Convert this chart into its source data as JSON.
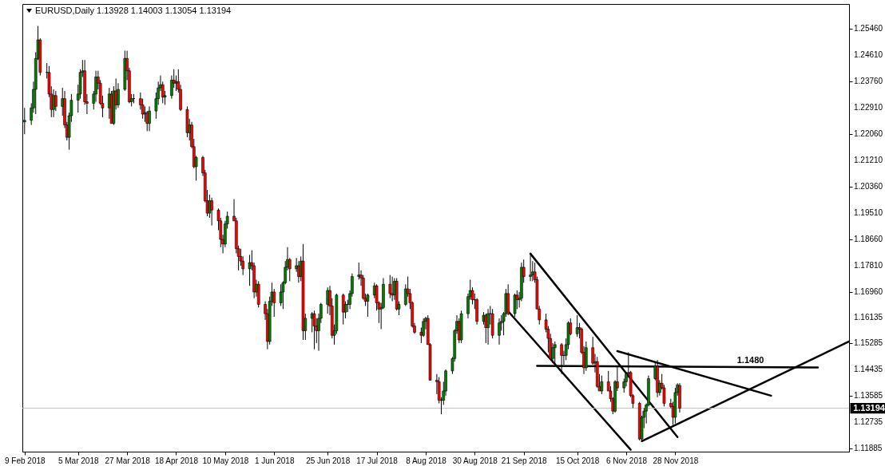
{
  "chart_data": {
    "type": "candlestick",
    "title": "EURUSD,Daily 1.13928 1.14003 1.13054 1.13194",
    "xlim": [
      "2018-02-08",
      "2019-02-14"
    ],
    "xticks": [
      {
        "value": "2018-02-09",
        "label": "9 Feb 2018"
      },
      {
        "value": "2018-03-05",
        "label": "5 Mar 2018"
      },
      {
        "value": "2018-03-27",
        "label": "27 Mar 2018"
      },
      {
        "value": "2018-04-18",
        "label": "18 Apr 2018"
      },
      {
        "value": "2018-05-10",
        "label": "10 May 2018"
      },
      {
        "value": "2018-06-01",
        "label": "1 Jun 2018"
      },
      {
        "value": "2018-06-25",
        "label": "25 Jun 2018"
      },
      {
        "value": "2018-07-17",
        "label": "17 Jul 2018"
      },
      {
        "value": "2018-08-08",
        "label": "8 Aug 2018"
      },
      {
        "value": "2018-08-30",
        "label": "30 Aug 2018"
      },
      {
        "value": "2018-09-21",
        "label": "21 Sep 2018"
      },
      {
        "value": "2018-10-15",
        "label": "15 Oct 2018"
      },
      {
        "value": "2018-11-06",
        "label": "6 Nov 2018"
      },
      {
        "value": "2018-11-28",
        "label": "28 Nov 2018"
      }
    ],
    "ylim": [
      1.1179,
      1.2626
    ],
    "yticks": [
      {
        "value": 1.2546,
        "label": "1.25460"
      },
      {
        "value": 1.2461,
        "label": "1.24610"
      },
      {
        "value": 1.2376,
        "label": "1.23760"
      },
      {
        "value": 1.2291,
        "label": "1.22910"
      },
      {
        "value": 1.2206,
        "label": "1.22060"
      },
      {
        "value": 1.2121,
        "label": "1.21210"
      },
      {
        "value": 1.2036,
        "label": "1.20360"
      },
      {
        "value": 1.1951,
        "label": "1.19510"
      },
      {
        "value": 1.1866,
        "label": "1.18660"
      },
      {
        "value": 1.1781,
        "label": "1.17810"
      },
      {
        "value": 1.1696,
        "label": "1.16960"
      },
      {
        "value": 1.16135,
        "label": "1.16135"
      },
      {
        "value": 1.15285,
        "label": "1.15285"
      },
      {
        "value": 1.14435,
        "label": "1.14435"
      },
      {
        "value": 1.13585,
        "label": "1.13585"
      },
      {
        "value": 1.12735,
        "label": "1.12735"
      },
      {
        "value": 1.11885,
        "label": "1.11885"
      }
    ],
    "x": [
      "2018-02-09",
      "2018-02-12",
      "2018-02-13",
      "2018-02-14",
      "2018-02-15",
      "2018-02-16",
      "2018-02-19",
      "2018-02-20",
      "2018-02-21",
      "2018-02-22",
      "2018-02-23",
      "2018-02-26",
      "2018-02-27",
      "2018-02-28",
      "2018-03-01",
      "2018-03-02",
      "2018-03-05",
      "2018-03-06",
      "2018-03-07",
      "2018-03-08",
      "2018-03-09",
      "2018-03-12",
      "2018-03-13",
      "2018-03-14",
      "2018-03-15",
      "2018-03-16",
      "2018-03-19",
      "2018-03-20",
      "2018-03-21",
      "2018-03-22",
      "2018-03-23",
      "2018-03-26",
      "2018-03-27",
      "2018-03-28",
      "2018-03-29",
      "2018-03-30",
      "2018-04-02",
      "2018-04-03",
      "2018-04-04",
      "2018-04-05",
      "2018-04-06",
      "2018-04-09",
      "2018-04-10",
      "2018-04-11",
      "2018-04-12",
      "2018-04-13",
      "2018-04-16",
      "2018-04-17",
      "2018-04-18",
      "2018-04-19",
      "2018-04-20",
      "2018-04-23",
      "2018-04-24",
      "2018-04-25",
      "2018-04-26",
      "2018-04-27",
      "2018-04-30",
      "2018-05-01",
      "2018-05-02",
      "2018-05-03",
      "2018-05-04",
      "2018-05-07",
      "2018-05-08",
      "2018-05-09",
      "2018-05-10",
      "2018-05-11",
      "2018-05-14",
      "2018-05-15",
      "2018-05-16",
      "2018-05-17",
      "2018-05-18",
      "2018-05-21",
      "2018-05-22",
      "2018-05-23",
      "2018-05-24",
      "2018-05-25",
      "2018-05-28",
      "2018-05-29",
      "2018-05-30",
      "2018-05-31",
      "2018-06-01",
      "2018-06-04",
      "2018-06-05",
      "2018-06-06",
      "2018-06-07",
      "2018-06-08",
      "2018-06-11",
      "2018-06-12",
      "2018-06-13",
      "2018-06-14",
      "2018-06-15",
      "2018-06-18",
      "2018-06-19",
      "2018-06-20",
      "2018-06-21",
      "2018-06-22",
      "2018-06-25",
      "2018-06-26",
      "2018-06-27",
      "2018-06-28",
      "2018-06-29",
      "2018-07-02",
      "2018-07-03",
      "2018-07-04",
      "2018-07-05",
      "2018-07-06",
      "2018-07-09",
      "2018-07-10",
      "2018-07-11",
      "2018-07-12",
      "2018-07-13",
      "2018-07-16",
      "2018-07-17",
      "2018-07-18",
      "2018-07-19",
      "2018-07-20",
      "2018-07-23",
      "2018-07-24",
      "2018-07-25",
      "2018-07-26",
      "2018-07-27",
      "2018-07-30",
      "2018-07-31",
      "2018-08-01",
      "2018-08-02",
      "2018-08-03",
      "2018-08-06",
      "2018-08-07",
      "2018-08-08",
      "2018-08-09",
      "2018-08-10",
      "2018-08-13",
      "2018-08-14",
      "2018-08-15",
      "2018-08-16",
      "2018-08-17",
      "2018-08-20",
      "2018-08-21",
      "2018-08-22",
      "2018-08-23",
      "2018-08-24",
      "2018-08-27",
      "2018-08-28",
      "2018-08-29",
      "2018-08-30",
      "2018-08-31",
      "2018-09-03",
      "2018-09-04",
      "2018-09-05",
      "2018-09-06",
      "2018-09-07",
      "2018-09-10",
      "2018-09-11",
      "2018-09-12",
      "2018-09-13",
      "2018-09-14",
      "2018-09-17",
      "2018-09-18",
      "2018-09-19",
      "2018-09-20",
      "2018-09-21",
      "2018-09-24",
      "2018-09-25",
      "2018-09-26",
      "2018-09-27",
      "2018-09-28",
      "2018-10-01",
      "2018-10-02",
      "2018-10-03",
      "2018-10-04",
      "2018-10-05",
      "2018-10-08",
      "2018-10-09",
      "2018-10-10",
      "2018-10-11",
      "2018-10-12",
      "2018-10-15",
      "2018-10-16",
      "2018-10-17",
      "2018-10-18",
      "2018-10-19",
      "2018-10-22",
      "2018-10-23",
      "2018-10-24",
      "2018-10-25",
      "2018-10-26",
      "2018-10-29",
      "2018-10-30",
      "2018-10-31",
      "2018-11-01",
      "2018-11-02",
      "2018-11-05",
      "2018-11-06",
      "2018-11-07",
      "2018-11-08",
      "2018-11-09",
      "2018-11-12",
      "2018-11-13",
      "2018-11-14",
      "2018-11-15",
      "2018-11-16",
      "2018-11-19",
      "2018-11-20",
      "2018-11-21",
      "2018-11-22",
      "2018-11-23",
      "2018-11-26",
      "2018-11-27",
      "2018-11-28",
      "2018-11-29",
      "2018-11-30"
    ],
    "ohlc": [
      [
        1.2245,
        1.229,
        1.2205,
        1.225
      ],
      [
        1.225,
        1.2305,
        1.2235,
        1.229
      ],
      [
        1.229,
        1.2375,
        1.2275,
        1.235
      ],
      [
        1.235,
        1.247,
        1.227,
        1.245
      ],
      [
        1.245,
        1.2555,
        1.2445,
        1.251
      ],
      [
        1.251,
        1.2515,
        1.2395,
        1.2405
      ],
      [
        1.2405,
        1.2435,
        1.2385,
        1.2405
      ],
      [
        1.2405,
        1.2425,
        1.2325,
        1.2335
      ],
      [
        1.2335,
        1.236,
        1.226,
        1.2285
      ],
      [
        1.2285,
        1.235,
        1.226,
        1.233
      ],
      [
        1.233,
        1.2345,
        1.228,
        1.2295
      ],
      [
        1.2295,
        1.2355,
        1.2265,
        1.232
      ],
      [
        1.232,
        1.2345,
        1.2225,
        1.2235
      ],
      [
        1.2235,
        1.2245,
        1.2185,
        1.2195
      ],
      [
        1.2195,
        1.2275,
        1.2155,
        1.2265
      ],
      [
        1.2265,
        1.2335,
        1.2245,
        1.2315
      ],
      [
        1.2315,
        1.2365,
        1.2275,
        1.2335
      ],
      [
        1.2335,
        1.2415,
        1.232,
        1.2405
      ],
      [
        1.2405,
        1.2445,
        1.239,
        1.241
      ],
      [
        1.241,
        1.2445,
        1.23,
        1.231
      ],
      [
        1.231,
        1.2335,
        1.227,
        1.2305
      ],
      [
        1.2305,
        1.2345,
        1.2285,
        1.2335
      ],
      [
        1.2335,
        1.241,
        1.231,
        1.239
      ],
      [
        1.239,
        1.241,
        1.235,
        1.237
      ],
      [
        1.237,
        1.238,
        1.23,
        1.2305
      ],
      [
        1.2305,
        1.233,
        1.226,
        1.229
      ],
      [
        1.229,
        1.2355,
        1.2255,
        1.2335
      ],
      [
        1.2335,
        1.2345,
        1.224,
        1.224
      ],
      [
        1.224,
        1.236,
        1.2235,
        1.2345
      ],
      [
        1.2345,
        1.2385,
        1.2285,
        1.23
      ],
      [
        1.23,
        1.237,
        1.229,
        1.235
      ],
      [
        1.235,
        1.2475,
        1.2345,
        1.245
      ],
      [
        1.245,
        1.2475,
        1.238,
        1.241
      ],
      [
        1.241,
        1.242,
        1.2305,
        1.231
      ],
      [
        1.231,
        1.2335,
        1.2295,
        1.232
      ],
      [
        1.232,
        1.2335,
        1.2305,
        1.232
      ],
      [
        1.232,
        1.234,
        1.2285,
        1.23
      ],
      [
        1.23,
        1.232,
        1.2255,
        1.227
      ],
      [
        1.227,
        1.2295,
        1.2245,
        1.2275
      ],
      [
        1.2275,
        1.228,
        1.2215,
        1.224
      ],
      [
        1.224,
        1.2295,
        1.2215,
        1.228
      ],
      [
        1.228,
        1.234,
        1.2255,
        1.232
      ],
      [
        1.232,
        1.2375,
        1.23,
        1.2355
      ],
      [
        1.2355,
        1.2395,
        1.2345,
        1.2365
      ],
      [
        1.2365,
        1.2375,
        1.2305,
        1.2325
      ],
      [
        1.2325,
        1.2345,
        1.23,
        1.233
      ],
      [
        1.233,
        1.2395,
        1.232,
        1.238
      ],
      [
        1.238,
        1.2415,
        1.2355,
        1.237
      ],
      [
        1.237,
        1.2395,
        1.2345,
        1.2375
      ],
      [
        1.2375,
        1.2415,
        1.234,
        1.235
      ],
      [
        1.235,
        1.2365,
        1.228,
        1.2285
      ],
      [
        1.2285,
        1.2295,
        1.2195,
        1.221
      ],
      [
        1.221,
        1.2255,
        1.2185,
        1.2235
      ],
      [
        1.2235,
        1.2245,
        1.216,
        1.2165
      ],
      [
        1.2165,
        1.219,
        1.2095,
        1.21
      ],
      [
        1.21,
        1.2135,
        1.2055,
        1.213
      ],
      [
        1.213,
        1.2135,
        1.207,
        1.208
      ],
      [
        1.208,
        1.209,
        1.1985,
        1.199
      ],
      [
        1.199,
        1.2025,
        1.194,
        1.195
      ],
      [
        1.195,
        1.201,
        1.1935,
        1.199
      ],
      [
        1.199,
        1.2,
        1.191,
        1.196
      ],
      [
        1.196,
        1.1965,
        1.1895,
        1.1925
      ],
      [
        1.1925,
        1.1935,
        1.184,
        1.1865
      ],
      [
        1.1865,
        1.188,
        1.182,
        1.185
      ],
      [
        1.185,
        1.1925,
        1.184,
        1.1915
      ],
      [
        1.1915,
        1.1955,
        1.19,
        1.194
      ],
      [
        1.194,
        1.1995,
        1.1925,
        1.1925
      ],
      [
        1.1925,
        1.1935,
        1.182,
        1.1835
      ],
      [
        1.1835,
        1.1845,
        1.1765,
        1.181
      ],
      [
        1.181,
        1.1835,
        1.178,
        1.1795
      ],
      [
        1.1795,
        1.181,
        1.175,
        1.177
      ],
      [
        1.177,
        1.1815,
        1.1715,
        1.179
      ],
      [
        1.179,
        1.183,
        1.1765,
        1.178
      ],
      [
        1.178,
        1.179,
        1.1675,
        1.1695
      ],
      [
        1.1695,
        1.1735,
        1.168,
        1.172
      ],
      [
        1.172,
        1.173,
        1.1645,
        1.1655
      ],
      [
        1.1655,
        1.1665,
        1.1605,
        1.1625
      ],
      [
        1.1625,
        1.164,
        1.151,
        1.1535
      ],
      [
        1.1535,
        1.168,
        1.1525,
        1.1665
      ],
      [
        1.1665,
        1.1725,
        1.165,
        1.1695
      ],
      [
        1.1695,
        1.1705,
        1.1615,
        1.166
      ],
      [
        1.166,
        1.172,
        1.165,
        1.1695
      ],
      [
        1.1695,
        1.173,
        1.164,
        1.1725
      ],
      [
        1.1725,
        1.1795,
        1.172,
        1.1775
      ],
      [
        1.1775,
        1.184,
        1.1765,
        1.18
      ],
      [
        1.18,
        1.1805,
        1.173,
        1.177
      ],
      [
        1.177,
        1.1805,
        1.176,
        1.178
      ],
      [
        1.178,
        1.1795,
        1.1725,
        1.1745
      ],
      [
        1.1745,
        1.181,
        1.173,
        1.1795
      ],
      [
        1.1795,
        1.185,
        1.154,
        1.157
      ],
      [
        1.157,
        1.1625,
        1.154,
        1.161
      ],
      [
        1.161,
        1.163,
        1.1565,
        1.1625
      ],
      [
        1.1625,
        1.1635,
        1.151,
        1.1585
      ],
      [
        1.1585,
        1.161,
        1.153,
        1.157
      ],
      [
        1.157,
        1.1625,
        1.1505,
        1.161
      ],
      [
        1.161,
        1.166,
        1.1595,
        1.1655
      ],
      [
        1.1655,
        1.171,
        1.1625,
        1.17
      ],
      [
        1.17,
        1.1715,
        1.162,
        1.165
      ],
      [
        1.165,
        1.1675,
        1.1545,
        1.1555
      ],
      [
        1.1555,
        1.159,
        1.1525,
        1.157
      ],
      [
        1.157,
        1.169,
        1.156,
        1.1685
      ],
      [
        1.1685,
        1.169,
        1.159,
        1.163
      ],
      [
        1.163,
        1.1665,
        1.161,
        1.1655
      ],
      [
        1.1655,
        1.167,
        1.163,
        1.1655
      ],
      [
        1.1655,
        1.17,
        1.164,
        1.169
      ],
      [
        1.169,
        1.1755,
        1.168,
        1.1745
      ],
      [
        1.1745,
        1.179,
        1.1735,
        1.175
      ],
      [
        1.175,
        1.1765,
        1.1715,
        1.174
      ],
      [
        1.174,
        1.175,
        1.167,
        1.1675
      ],
      [
        1.1675,
        1.169,
        1.165,
        1.1665
      ],
      [
        1.1665,
        1.169,
        1.1615,
        1.1685
      ],
      [
        1.1685,
        1.1725,
        1.1675,
        1.1715
      ],
      [
        1.1715,
        1.172,
        1.1635,
        1.166
      ],
      [
        1.166,
        1.1665,
        1.1595,
        1.164
      ],
      [
        1.164,
        1.166,
        1.1575,
        1.1645
      ],
      [
        1.1645,
        1.174,
        1.164,
        1.172
      ],
      [
        1.172,
        1.175,
        1.1675,
        1.169
      ],
      [
        1.169,
        1.1745,
        1.1665,
        1.1685
      ],
      [
        1.1685,
        1.174,
        1.167,
        1.173
      ],
      [
        1.173,
        1.174,
        1.1635,
        1.164
      ],
      [
        1.164,
        1.1665,
        1.162,
        1.1655
      ],
      [
        1.1655,
        1.172,
        1.165,
        1.1705
      ],
      [
        1.1705,
        1.1745,
        1.168,
        1.169
      ],
      [
        1.169,
        1.1705,
        1.164,
        1.166
      ],
      [
        1.166,
        1.1665,
        1.158,
        1.1585
      ],
      [
        1.1585,
        1.1595,
        1.156,
        1.1565
      ],
      [
        1.1565,
        1.158,
        1.153,
        1.1555
      ],
      [
        1.1555,
        1.161,
        1.155,
        1.16
      ],
      [
        1.16,
        1.1615,
        1.1575,
        1.161
      ],
      [
        1.161,
        1.162,
        1.1525,
        1.1525
      ],
      [
        1.1525,
        1.153,
        1.141,
        1.141
      ],
      [
        1.141,
        1.143,
        1.1365,
        1.1405
      ],
      [
        1.1405,
        1.142,
        1.1335,
        1.1345
      ],
      [
        1.1345,
        1.1355,
        1.13,
        1.1345
      ],
      [
        1.1345,
        1.1405,
        1.133,
        1.1375
      ],
      [
        1.1375,
        1.1445,
        1.136,
        1.144
      ],
      [
        1.144,
        1.1485,
        1.143,
        1.148
      ],
      [
        1.148,
        1.1575,
        1.147,
        1.157
      ],
      [
        1.157,
        1.162,
        1.156,
        1.16
      ],
      [
        1.16,
        1.161,
        1.153,
        1.154
      ],
      [
        1.154,
        1.1635,
        1.153,
        1.1625
      ],
      [
        1.1625,
        1.169,
        1.161,
        1.168
      ],
      [
        1.168,
        1.1735,
        1.167,
        1.17
      ],
      [
        1.17,
        1.171,
        1.1655,
        1.167
      ],
      [
        1.167,
        1.169,
        1.164,
        1.167
      ],
      [
        1.167,
        1.1675,
        1.159,
        1.16
      ],
      [
        1.16,
        1.163,
        1.159,
        1.162
      ],
      [
        1.162,
        1.1625,
        1.153,
        1.158
      ],
      [
        1.158,
        1.164,
        1.1525,
        1.1625
      ],
      [
        1.1625,
        1.165,
        1.159,
        1.1625
      ],
      [
        1.1625,
        1.164,
        1.1545,
        1.1555
      ],
      [
        1.1555,
        1.161,
        1.1525,
        1.1595
      ],
      [
        1.1595,
        1.162,
        1.157,
        1.16
      ],
      [
        1.16,
        1.163,
        1.1555,
        1.1625
      ],
      [
        1.1625,
        1.1705,
        1.1615,
        1.169
      ],
      [
        1.169,
        1.172,
        1.162,
        1.1625
      ],
      [
        1.1625,
        1.169,
        1.1615,
        1.1685
      ],
      [
        1.1685,
        1.17,
        1.164,
        1.167
      ],
      [
        1.167,
        1.1695,
        1.1645,
        1.1675
      ],
      [
        1.1675,
        1.179,
        1.1665,
        1.1775
      ],
      [
        1.1775,
        1.18,
        1.1725,
        1.1745
      ],
      [
        1.1745,
        1.1815,
        1.173,
        1.175
      ],
      [
        1.175,
        1.1795,
        1.173,
        1.176
      ],
      [
        1.176,
        1.179,
        1.1725,
        1.1735
      ],
      [
        1.1735,
        1.1745,
        1.164,
        1.164
      ],
      [
        1.164,
        1.165,
        1.159,
        1.1605
      ],
      [
        1.1605,
        1.1625,
        1.1565,
        1.1575
      ],
      [
        1.1575,
        1.1585,
        1.15,
        1.1545
      ],
      [
        1.1545,
        1.156,
        1.148,
        1.148
      ],
      [
        1.148,
        1.153,
        1.1465,
        1.1515
      ],
      [
        1.1515,
        1.1535,
        1.146,
        1.1525
      ],
      [
        1.1525,
        1.153,
        1.143,
        1.149
      ],
      [
        1.149,
        1.1505,
        1.146,
        1.149
      ],
      [
        1.149,
        1.1545,
        1.1475,
        1.1525
      ],
      [
        1.1525,
        1.16,
        1.151,
        1.1595
      ],
      [
        1.1595,
        1.161,
        1.1555,
        1.156
      ],
      [
        1.156,
        1.162,
        1.155,
        1.158
      ],
      [
        1.158,
        1.1595,
        1.1545,
        1.1575
      ],
      [
        1.1575,
        1.158,
        1.1495,
        1.15
      ],
      [
        1.15,
        1.152,
        1.143,
        1.145
      ],
      [
        1.145,
        1.1535,
        1.144,
        1.1515
      ],
      [
        1.1515,
        1.155,
        1.146,
        1.1465
      ],
      [
        1.1465,
        1.1495,
        1.1435,
        1.147
      ],
      [
        1.147,
        1.1485,
        1.1385,
        1.139
      ],
      [
        1.139,
        1.143,
        1.1375,
        1.1375
      ],
      [
        1.1375,
        1.1425,
        1.1365,
        1.1405
      ],
      [
        1.1405,
        1.144,
        1.1375,
        1.1375
      ],
      [
        1.1375,
        1.139,
        1.134,
        1.135
      ],
      [
        1.135,
        1.1355,
        1.13,
        1.131
      ],
      [
        1.131,
        1.141,
        1.1305,
        1.1405
      ],
      [
        1.1405,
        1.1455,
        1.1375,
        1.1385
      ],
      [
        1.1385,
        1.1415,
        1.137,
        1.1405
      ],
      [
        1.1405,
        1.1435,
        1.139,
        1.143
      ],
      [
        1.143,
        1.15,
        1.142,
        1.1435
      ],
      [
        1.1435,
        1.144,
        1.1355,
        1.136
      ],
      [
        1.136,
        1.1365,
        1.132,
        1.1335
      ],
      [
        1.1335,
        1.134,
        1.1215,
        1.122
      ],
      [
        1.122,
        1.1295,
        1.1215,
        1.129
      ],
      [
        1.129,
        1.132,
        1.1255,
        1.131
      ],
      [
        1.131,
        1.1335,
        1.127,
        1.133
      ],
      [
        1.133,
        1.1425,
        1.1325,
        1.1415
      ],
      [
        1.1415,
        1.147,
        1.141,
        1.1455
      ],
      [
        1.1455,
        1.1475,
        1.1355,
        1.137
      ],
      [
        1.137,
        1.141,
        1.136,
        1.14
      ],
      [
        1.14,
        1.143,
        1.138,
        1.1385
      ],
      [
        1.1385,
        1.1395,
        1.1325,
        1.1335
      ],
      [
        1.1335,
        1.135,
        1.132,
        1.1325
      ],
      [
        1.1325,
        1.134,
        1.1265,
        1.129
      ],
      [
        1.129,
        1.1385,
        1.127,
        1.137
      ],
      [
        1.137,
        1.14,
        1.136,
        1.1395
      ],
      [
        1.13928,
        1.14003,
        1.13054,
        1.13194
      ]
    ],
    "series": [
      {
        "type": "line",
        "color": "#000000",
        "x": [
          "2018-09-24",
          "2018-11-29"
        ],
        "values": [
          1.1819,
          1.1226
        ]
      },
      {
        "type": "line",
        "color": "#000000",
        "x": [
          "2018-09-14",
          "2018-11-08"
        ],
        "values": [
          1.1633,
          1.1185
        ]
      },
      {
        "type": "line",
        "name": "1.1480",
        "color": "#000000",
        "x": [
          "2018-09-27",
          "2019-01-31"
        ],
        "values": [
          1.1456,
          1.1451
        ]
      },
      {
        "type": "line",
        "color": "#000000",
        "x": [
          "2018-11-02",
          "2019-01-10"
        ],
        "values": [
          1.1504,
          1.136
        ]
      },
      {
        "type": "line",
        "color": "#000000",
        "x": [
          "2018-11-13",
          "2019-02-14"
        ],
        "values": [
          1.1213,
          1.1535
        ]
      }
    ],
    "ref_lines": [
      {
        "axis": "y",
        "value": 1.13194,
        "label": "1.13194",
        "color": "#c0c0c0"
      }
    ]
  }
}
